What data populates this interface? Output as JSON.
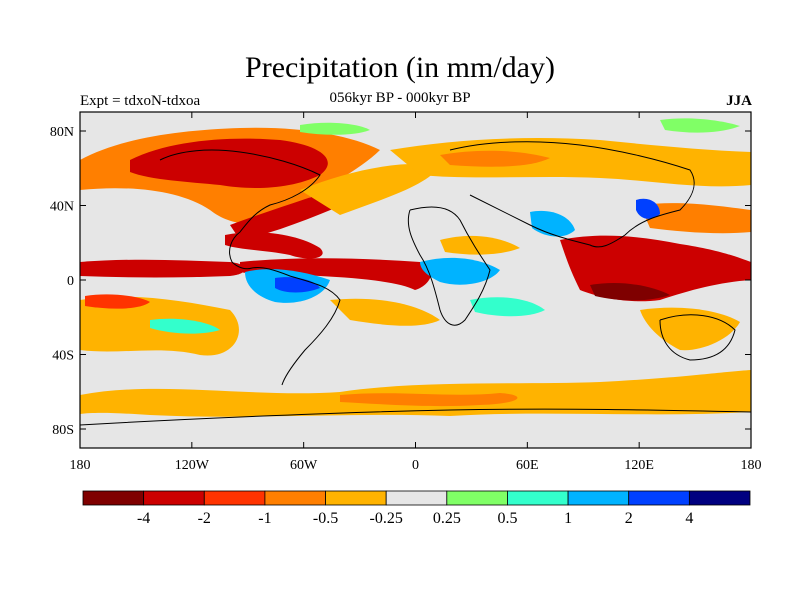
{
  "header": {
    "title": "Precipitation (in mm/day)",
    "subtitle": "056kyr BP - 000kyr BP",
    "experiment": "Expt = tdxoN-tdxoa",
    "season": "JJA"
  },
  "axes": {
    "lon_ticks": [
      "180",
      "120W",
      "60W",
      "0",
      "60E",
      "120E",
      "180"
    ],
    "lat_ticks": [
      "80N",
      "40N",
      "0",
      "40S",
      "80S"
    ]
  },
  "colorbar": {
    "colors": [
      "#7f0000",
      "#cc0000",
      "#ff3300",
      "#ff7f00",
      "#ffb300",
      "#e6e6e6",
      "#80ff66",
      "#33ffcc",
      "#00b3ff",
      "#0040ff",
      "#000080"
    ],
    "labels": [
      "-4",
      "-2",
      "-1",
      "-0.5",
      "-0.25",
      "0.25",
      "0.5",
      "1",
      "2",
      "4"
    ]
  },
  "map": {
    "background_color": "#e6e6e6",
    "coastline_color": "#000000"
  }
}
